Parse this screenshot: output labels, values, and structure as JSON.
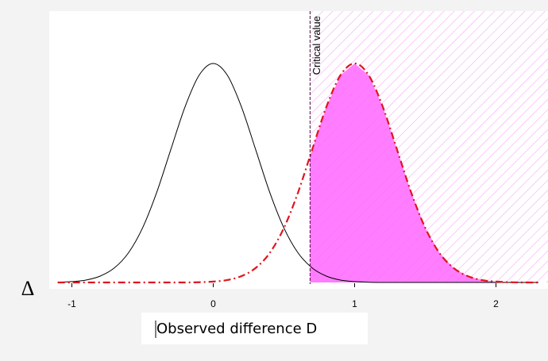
{
  "chart_data": {
    "type": "line",
    "x_label": "Observed difference D",
    "axis_symbol": "Δ",
    "x": [
      -1.1,
      -1.0,
      -0.9,
      -0.8,
      -0.7,
      -0.6,
      -0.5,
      -0.4,
      -0.3,
      -0.2,
      -0.1,
      0,
      0.1,
      0.2,
      0.3,
      0.4,
      0.5,
      0.6,
      0.7,
      0.8,
      0.9,
      1.0,
      1.1,
      1.2,
      1.3,
      1.4,
      1.5,
      1.6,
      1.7,
      1.8,
      1.9,
      2.0,
      2.1,
      2.2,
      2.3
    ],
    "series": [
      {
        "color": "#000000",
        "dash": "solid",
        "values": [
          0.001,
          0.004,
          0.011,
          0.029,
          0.066,
          0.135,
          0.249,
          0.411,
          0.607,
          0.801,
          0.946,
          1,
          0.946,
          0.801,
          0.607,
          0.411,
          0.249,
          0.135,
          0.066,
          0.029,
          0.011,
          0.004,
          0.001,
          0,
          0,
          0,
          0,
          0,
          0,
          0,
          0,
          0,
          0,
          0,
          0
        ]
      },
      {
        "color": "#e0141e",
        "dash": "dashdot",
        "values": [
          0,
          0,
          0,
          0,
          0,
          0,
          0,
          0,
          0,
          0,
          0.001,
          0.004,
          0.011,
          0.029,
          0.066,
          0.135,
          0.249,
          0.411,
          0.607,
          0.801,
          0.946,
          1,
          0.946,
          0.801,
          0.607,
          0.411,
          0.249,
          0.135,
          0.066,
          0.029,
          0.011,
          0.004,
          0.001,
          0,
          0
        ]
      }
    ],
    "critical_value": 0.685,
    "critical_label": "Critical value",
    "shade_color": "#ff66ff",
    "xlim": [
      -1.16,
      2.34
    ],
    "ylim": [
      0,
      1
    ],
    "xticks": [
      -1,
      0,
      1,
      2
    ]
  }
}
